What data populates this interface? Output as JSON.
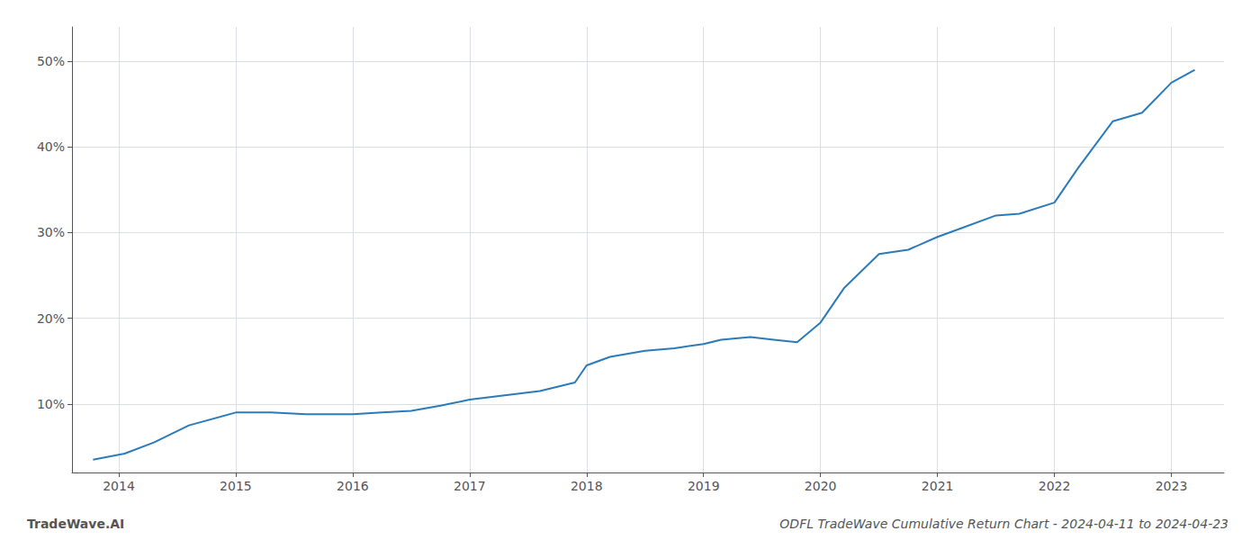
{
  "chart_data": {
    "type": "line",
    "title": "ODFL TradeWave Cumulative Return Chart - 2024-04-11 to 2024-04-23",
    "annotations": [
      "TradeWave.AI"
    ],
    "x": [
      2013.78,
      2014.05,
      2014.3,
      2014.6,
      2015.0,
      2015.3,
      2015.6,
      2016.0,
      2016.25,
      2016.5,
      2016.75,
      2017.0,
      2017.3,
      2017.6,
      2017.9,
      2018.0,
      2018.2,
      2018.5,
      2018.75,
      2019.0,
      2019.15,
      2019.4,
      2019.6,
      2019.8,
      2020.0,
      2020.2,
      2020.5,
      2020.75,
      2021.0,
      2021.2,
      2021.5,
      2021.7,
      2022.0,
      2022.2,
      2022.5,
      2022.75,
      2023.0,
      2023.2
    ],
    "values": [
      3.5,
      4.2,
      5.5,
      7.5,
      9.0,
      9.0,
      8.8,
      8.8,
      9.0,
      9.2,
      9.8,
      10.5,
      11.0,
      11.5,
      12.5,
      14.5,
      15.5,
      16.2,
      16.5,
      17.0,
      17.5,
      17.8,
      17.5,
      17.2,
      19.5,
      23.5,
      27.5,
      28.0,
      29.5,
      30.5,
      32.0,
      32.2,
      33.5,
      37.5,
      43.0,
      44.0,
      47.5,
      49.0
    ],
    "color": "#2b7bba",
    "xlim": [
      2013.6,
      2023.45
    ],
    "xticks": [
      2014,
      2015,
      2016,
      2017,
      2018,
      2019,
      2020,
      2021,
      2022,
      2023
    ],
    "ylim": [
      2,
      54
    ],
    "yticks": [
      {
        "value": 10,
        "label": "10%"
      },
      {
        "value": 20,
        "label": "20%"
      },
      {
        "value": 30,
        "label": "30%"
      },
      {
        "value": 40,
        "label": "40%"
      },
      {
        "value": 50,
        "label": "50%"
      }
    ],
    "grid": true
  }
}
